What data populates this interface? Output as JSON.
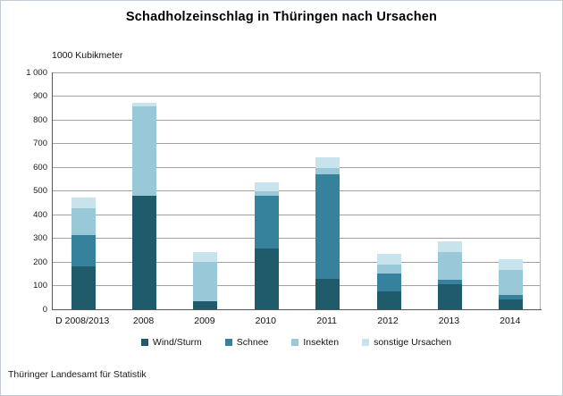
{
  "title": "Schadholzeinschlag in Thüringen nach Ursachen",
  "footer": "Thüringer Landesamt für Statistik",
  "chart_data": {
    "type": "bar",
    "stacked": true,
    "title": "Schadholzeinschlag in Thüringen nach Ursachen",
    "unit_label": "1000 Kubikmeter",
    "xlabel": "",
    "ylabel": "1000 Kubikmeter",
    "ylim": [
      0,
      1000
    ],
    "ytick_step": 100,
    "ytick_labels": [
      "0",
      "100",
      "200",
      "300",
      "400",
      "500",
      "600",
      "700",
      "800",
      "900",
      "1 000"
    ],
    "grid": true,
    "legend_position": "bottom",
    "categories": [
      "D 2008/2013",
      "2008",
      "2009",
      "2010",
      "2011",
      "2012",
      "2013",
      "2014"
    ],
    "series": [
      {
        "name": "Wind/Sturm",
        "color": "#1F5B6B",
        "values": [
          180,
          480,
          35,
          255,
          130,
          75,
          105,
          40
        ]
      },
      {
        "name": "Schnee",
        "color": "#36819B",
        "values": [
          135,
          0,
          0,
          225,
          440,
          75,
          20,
          20
        ]
      },
      {
        "name": "Insekten",
        "color": "#99C9D8",
        "values": [
          110,
          375,
          165,
          20,
          25,
          40,
          115,
          105
        ]
      },
      {
        "name": "sonstige Ursachen",
        "color": "#C9E3EC",
        "values": [
          45,
          15,
          40,
          35,
          45,
          45,
          45,
          45
        ]
      }
    ],
    "totals": [
      470,
      870,
      240,
      535,
      640,
      235,
      285,
      210
    ]
  },
  "colors": {
    "gridline": "#a2a2a2",
    "axis": "#565656",
    "background": "#ffffff"
  }
}
